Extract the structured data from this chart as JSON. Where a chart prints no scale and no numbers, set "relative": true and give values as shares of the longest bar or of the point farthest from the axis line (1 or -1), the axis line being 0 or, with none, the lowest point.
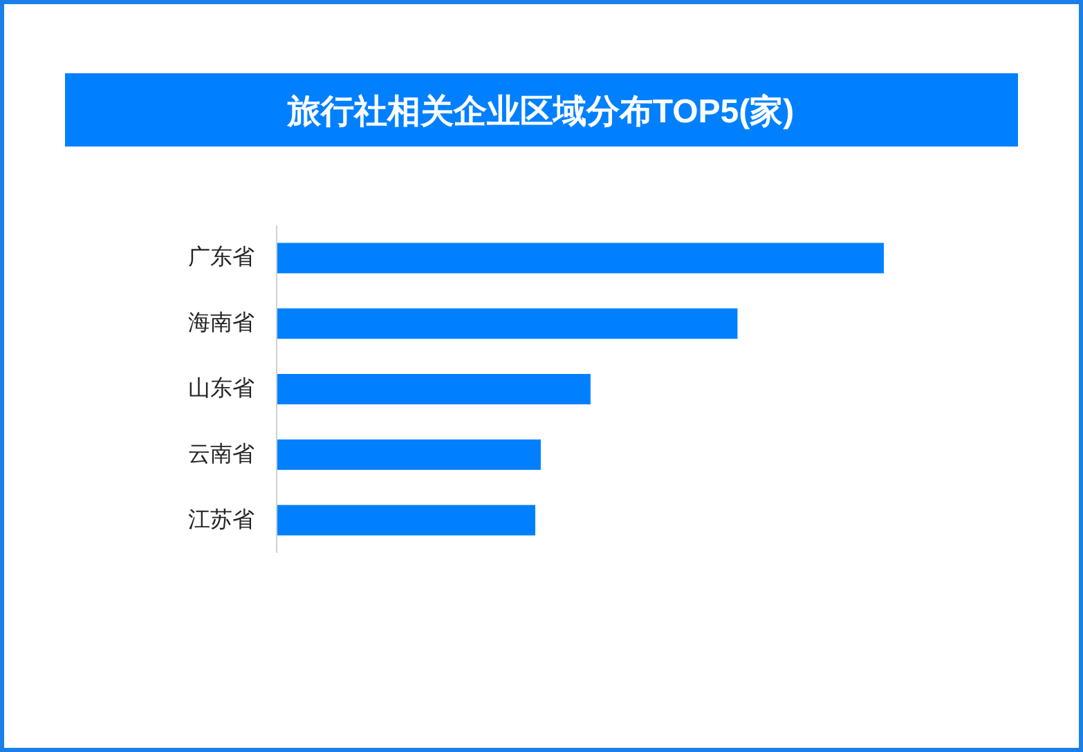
{
  "chart_data": {
    "type": "bar",
    "orientation": "horizontal",
    "relative": true,
    "title": "旅行社相关企业区域分布TOP5(家)",
    "categories": [
      "广东省",
      "海南省",
      "山东省",
      "云南省",
      "江苏省"
    ],
    "values": [
      1,
      0.759,
      0.517,
      0.435,
      0.426
    ],
    "color": "#0080ff"
  }
}
